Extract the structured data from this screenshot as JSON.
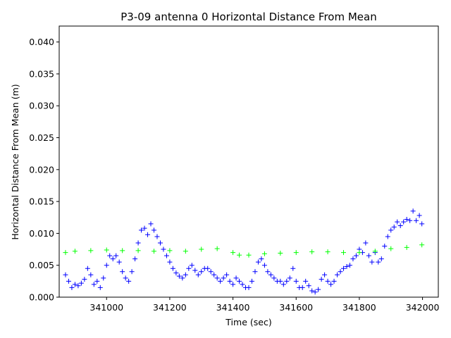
{
  "chart_data": {
    "type": "scatter",
    "title": "P3-09 antenna 0 Horizontal Distance From Mean",
    "xlabel": "Time (sec)",
    "ylabel": "Horizontal Distance From Mean (m)",
    "xlim": [
      340850,
      342050
    ],
    "ylim": [
      0,
      0.0425
    ],
    "xticks": [
      341000,
      341200,
      341400,
      341600,
      341800,
      342000
    ],
    "yticks": [
      0.0,
      0.005,
      0.01,
      0.015,
      0.02,
      0.025,
      0.03,
      0.035,
      0.04
    ],
    "xtick_labels": [
      "341000",
      "341200",
      "341400",
      "341600",
      "341800",
      "342000"
    ],
    "ytick_labels": [
      "0.000",
      "0.005",
      "0.010",
      "0.015",
      "0.020",
      "0.025",
      "0.030",
      "0.035",
      "0.040"
    ],
    "grid": false,
    "series": [
      {
        "marker": "+",
        "color": "#0000ff",
        "points": [
          [
            340870,
            0.0035
          ],
          [
            340880,
            0.0025
          ],
          [
            340890,
            0.0015
          ],
          [
            340900,
            0.002
          ],
          [
            340910,
            0.0018
          ],
          [
            340920,
            0.0022
          ],
          [
            340930,
            0.0028
          ],
          [
            340940,
            0.0045
          ],
          [
            340950,
            0.0035
          ],
          [
            340960,
            0.002
          ],
          [
            340970,
            0.0025
          ],
          [
            340980,
            0.0015
          ],
          [
            340990,
            0.003
          ],
          [
            341000,
            0.005
          ],
          [
            341010,
            0.0065
          ],
          [
            341020,
            0.006
          ],
          [
            341030,
            0.0065
          ],
          [
            341040,
            0.0055
          ],
          [
            341050,
            0.004
          ],
          [
            341060,
            0.003
          ],
          [
            341070,
            0.0025
          ],
          [
            341080,
            0.004
          ],
          [
            341090,
            0.006
          ],
          [
            341100,
            0.0085
          ],
          [
            341110,
            0.0105
          ],
          [
            341120,
            0.0108
          ],
          [
            341130,
            0.0098
          ],
          [
            341140,
            0.0115
          ],
          [
            341150,
            0.0105
          ],
          [
            341160,
            0.0095
          ],
          [
            341170,
            0.0085
          ],
          [
            341180,
            0.0075
          ],
          [
            341190,
            0.0065
          ],
          [
            341200,
            0.0055
          ],
          [
            341210,
            0.0045
          ],
          [
            341220,
            0.0038
          ],
          [
            341230,
            0.0033
          ],
          [
            341240,
            0.003
          ],
          [
            341250,
            0.0035
          ],
          [
            341260,
            0.0045
          ],
          [
            341270,
            0.005
          ],
          [
            341280,
            0.0042
          ],
          [
            341290,
            0.0035
          ],
          [
            341300,
            0.004
          ],
          [
            341310,
            0.0045
          ],
          [
            341320,
            0.0045
          ],
          [
            341330,
            0.004
          ],
          [
            341340,
            0.0035
          ],
          [
            341350,
            0.003
          ],
          [
            341360,
            0.0025
          ],
          [
            341370,
            0.003
          ],
          [
            341380,
            0.0035
          ],
          [
            341390,
            0.0025
          ],
          [
            341400,
            0.002
          ],
          [
            341410,
            0.003
          ],
          [
            341420,
            0.0025
          ],
          [
            341430,
            0.002
          ],
          [
            341440,
            0.0015
          ],
          [
            341450,
            0.0015
          ],
          [
            341460,
            0.0025
          ],
          [
            341470,
            0.004
          ],
          [
            341480,
            0.0055
          ],
          [
            341490,
            0.006
          ],
          [
            341500,
            0.005
          ],
          [
            341510,
            0.004
          ],
          [
            341520,
            0.0035
          ],
          [
            341530,
            0.003
          ],
          [
            341540,
            0.0025
          ],
          [
            341550,
            0.0025
          ],
          [
            341560,
            0.002
          ],
          [
            341570,
            0.0025
          ],
          [
            341580,
            0.003
          ],
          [
            341590,
            0.0045
          ],
          [
            341600,
            0.0025
          ],
          [
            341610,
            0.0015
          ],
          [
            341620,
            0.0015
          ],
          [
            341630,
            0.0025
          ],
          [
            341640,
            0.0018
          ],
          [
            341650,
            0.001
          ],
          [
            341660,
            0.0008
          ],
          [
            341670,
            0.0012
          ],
          [
            341680,
            0.0028
          ],
          [
            341690,
            0.0035
          ],
          [
            341700,
            0.0025
          ],
          [
            341710,
            0.002
          ],
          [
            341720,
            0.0025
          ],
          [
            341730,
            0.0035
          ],
          [
            341740,
            0.004
          ],
          [
            341750,
            0.0045
          ],
          [
            341760,
            0.0048
          ],
          [
            341770,
            0.005
          ],
          [
            341780,
            0.006
          ],
          [
            341790,
            0.0065
          ],
          [
            341800,
            0.0075
          ],
          [
            341810,
            0.007
          ],
          [
            341820,
            0.0085
          ],
          [
            341830,
            0.0065
          ],
          [
            341840,
            0.0055
          ],
          [
            341850,
            0.007
          ],
          [
            341860,
            0.0055
          ],
          [
            341870,
            0.006
          ],
          [
            341880,
            0.008
          ],
          [
            341890,
            0.0095
          ],
          [
            341900,
            0.0105
          ],
          [
            341910,
            0.011
          ],
          [
            341920,
            0.0118
          ],
          [
            341930,
            0.0112
          ],
          [
            341940,
            0.0118
          ],
          [
            341950,
            0.0122
          ],
          [
            341960,
            0.012
          ],
          [
            341970,
            0.0135
          ],
          [
            341980,
            0.012
          ],
          [
            341990,
            0.0128
          ],
          [
            341998,
            0.0115
          ]
        ]
      },
      {
        "marker": "+",
        "color": "#00ff00",
        "points": [
          [
            340870,
            0.007
          ],
          [
            340900,
            0.0072
          ],
          [
            340950,
            0.0073
          ],
          [
            341000,
            0.0074
          ],
          [
            341050,
            0.0073
          ],
          [
            341100,
            0.0073
          ],
          [
            341150,
            0.0072
          ],
          [
            341200,
            0.0073
          ],
          [
            341250,
            0.0072
          ],
          [
            341300,
            0.0075
          ],
          [
            341350,
            0.0076
          ],
          [
            341400,
            0.007
          ],
          [
            341420,
            0.0066
          ],
          [
            341450,
            0.0066
          ],
          [
            341500,
            0.0068
          ],
          [
            341550,
            0.0069
          ],
          [
            341600,
            0.007
          ],
          [
            341650,
            0.0071
          ],
          [
            341700,
            0.0071
          ],
          [
            341750,
            0.007
          ],
          [
            341800,
            0.007
          ],
          [
            341850,
            0.0072
          ],
          [
            341900,
            0.0076
          ],
          [
            341950,
            0.0078
          ],
          [
            341998,
            0.0082
          ]
        ]
      }
    ]
  }
}
